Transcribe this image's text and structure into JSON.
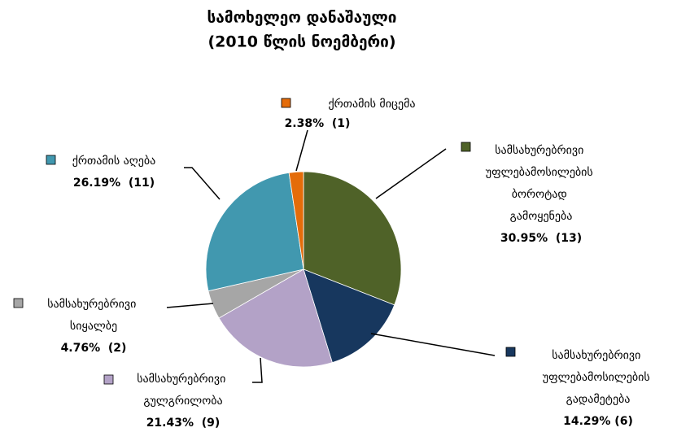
{
  "chart_data": {
    "type": "pie",
    "title": "სამოხელეო დანაშაული",
    "subtitle": "(2010 წლის ნოემბერი)",
    "categories": [
      "სამსახურებრივი უფლებამოსილების ბოროტად გამოყენება",
      "სამსახურებრივი უფლებამოსილების გადამეტება",
      "სამსახურებრივი გულგრილობა",
      "სამსახურებრივი სიყალბე",
      "ქრთამის აღება",
      "ქრთამის მიცემა"
    ],
    "values": [
      30.95,
      14.29,
      21.43,
      4.76,
      26.19,
      2.38
    ],
    "value_labels": [
      "30.95%  (13)",
      "14.29% (6)",
      "21.43%  (9)",
      "4.76%  (2)",
      "26.19%  (11)",
      "2.38%  (1)"
    ],
    "colors": [
      "#4f6228",
      "#17375e",
      "#b3a2c7",
      "#a6a6a6",
      "#4198af",
      "#e46c0a"
    ]
  }
}
